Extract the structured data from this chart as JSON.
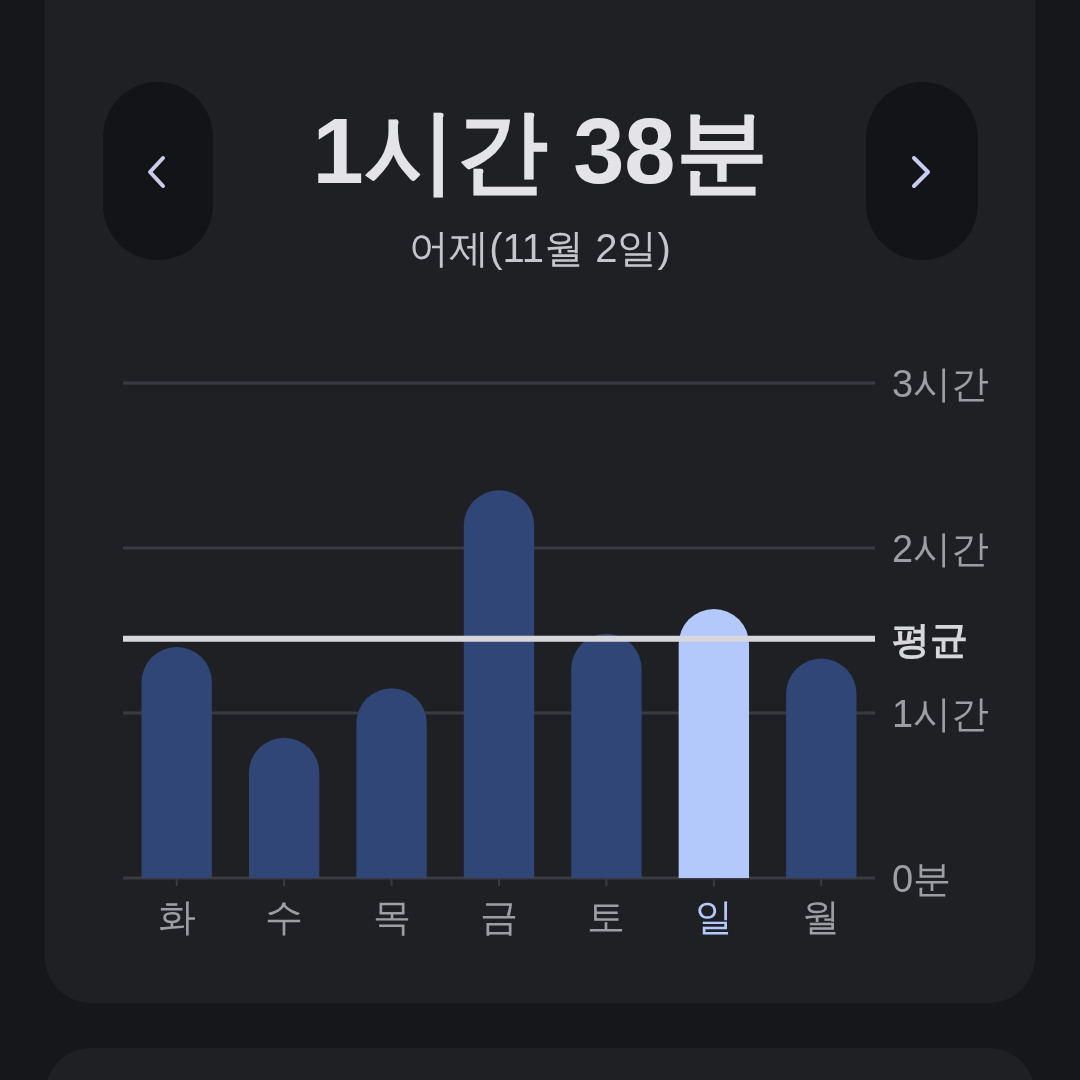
{
  "chart_data": {
    "type": "bar",
    "title": "1시간 38분",
    "subtitle": "어제(11월 2일)",
    "categories": [
      "화",
      "수",
      "목",
      "금",
      "토",
      "일",
      "월"
    ],
    "values": [
      1.4,
      0.85,
      1.15,
      2.35,
      1.48,
      1.63,
      1.33
    ],
    "colors": [
      "#2f4677",
      "#2f4677",
      "#2f4677",
      "#2f4677",
      "#2f4677",
      "#b3c9fb",
      "#2f4677"
    ],
    "ylim": [
      0,
      3
    ],
    "yticks": [
      {
        "value": 0,
        "label": "0분"
      },
      {
        "value": 1,
        "label": "1시간"
      },
      {
        "value": 2,
        "label": "2시간"
      },
      {
        "value": 3,
        "label": "3시간"
      }
    ],
    "grid": "y",
    "ref_lines": [
      {
        "axis": "y",
        "value": 1.45,
        "label": "평균",
        "color": "#d6d6db"
      }
    ]
  }
}
